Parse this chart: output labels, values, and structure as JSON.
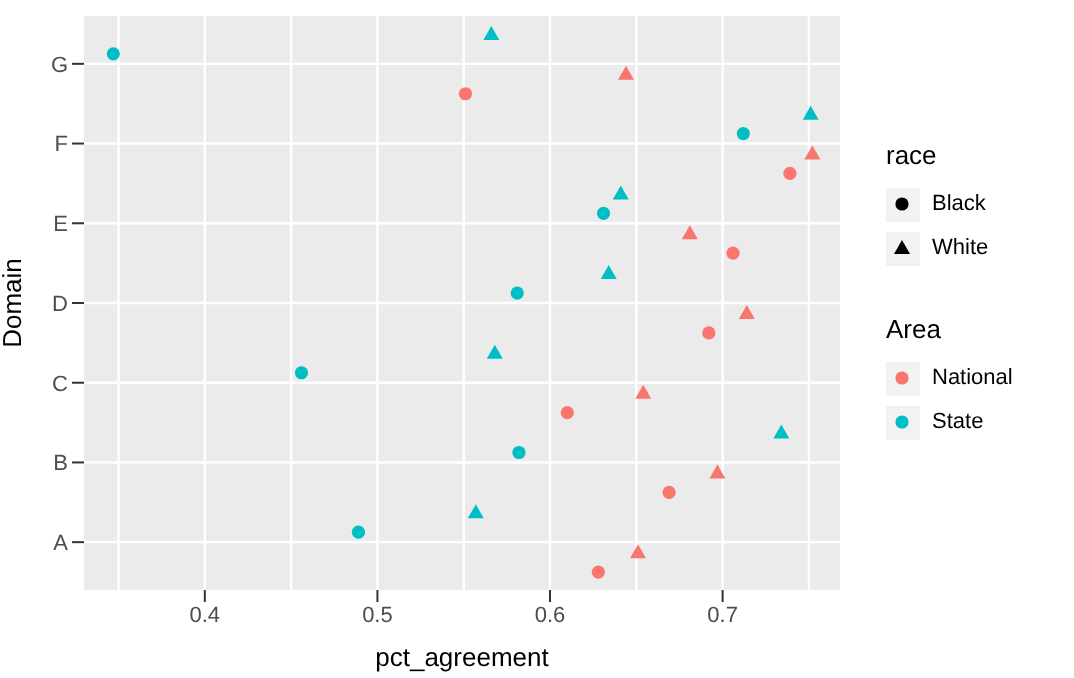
{
  "chart_data": {
    "type": "scatter",
    "orientation": "horizontal",
    "xlabel": "pct_agreement",
    "ylabel": "Domain",
    "legend_title": [
      "race",
      "Area"
    ],
    "annotations": [
      "Black",
      "White"
    ],
    "categories": [
      "G",
      "F",
      "E",
      "D",
      "C",
      "B",
      "A"
    ],
    "xlim": [
      0.33,
      0.768
    ],
    "xticks": [
      0.4,
      0.5,
      0.6,
      0.7
    ],
    "grid": true,
    "legend": "right",
    "series": [
      {
        "name": "National",
        "marker": "circle",
        "color": "#f8766d",
        "values": [
          0.551,
          0.739,
          0.706,
          0.692,
          0.61,
          0.669,
          0.628
        ]
      },
      {
        "marker": "triangle",
        "color": "#f8766d",
        "values": [
          0.644,
          0.752,
          0.681,
          0.714,
          0.654,
          0.697,
          0.651
        ]
      },
      {
        "name": "State",
        "marker": "circle",
        "color": "#00bfc4",
        "values": [
          0.347,
          0.712,
          0.631,
          0.581,
          0.456,
          0.582,
          0.489
        ]
      },
      {
        "marker": "triangle",
        "color": "#00bfc4",
        "values": [
          0.566,
          0.751,
          0.641,
          0.634,
          0.568,
          0.734,
          0.557
        ]
      }
    ]
  }
}
